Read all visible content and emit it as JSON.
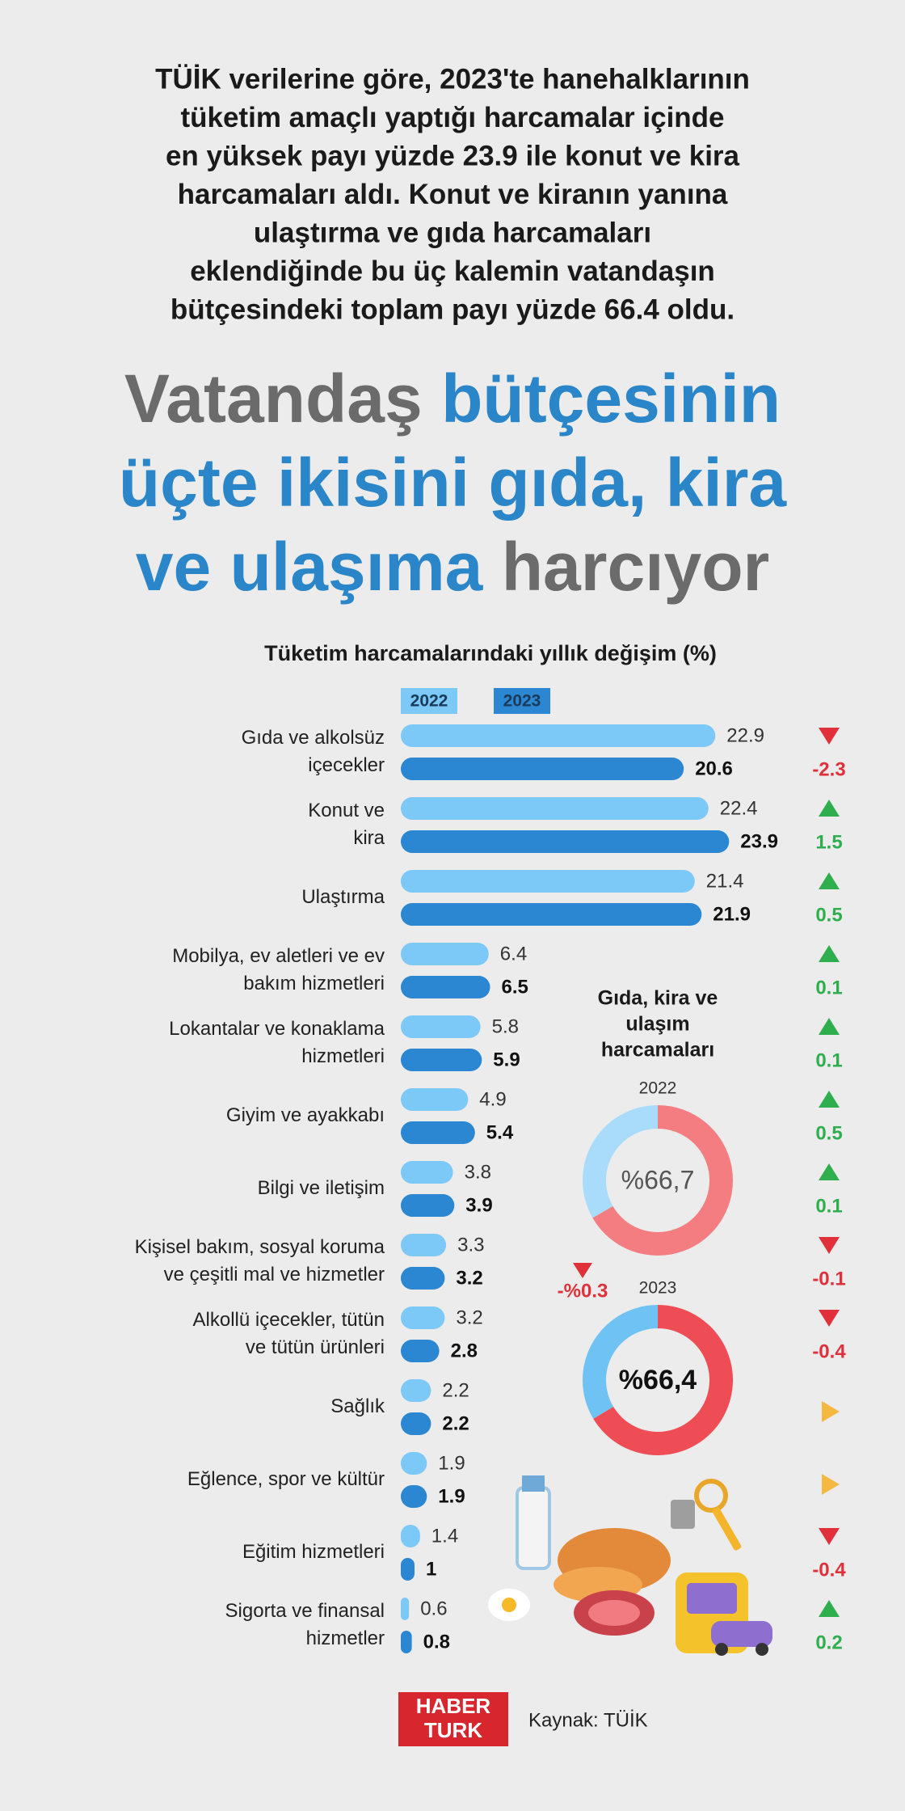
{
  "intro": [
    "TÜİK verilerine göre, 2023'te hanehalklarının",
    "tüketim amaçlı yaptığı harcamalar içinde",
    "en yüksek payı yüzde 23.9 ile konut ve kira",
    "harcamaları aldı. Konut ve kiranın yanına",
    "ulaştırma ve gıda harcamaları",
    "eklendiğinde bu üç kalemin vatandaşın",
    "bütçesindeki toplam payı yüzde 66.4 oldu."
  ],
  "headline": [
    [
      {
        "text": "Vatandaş ",
        "color": "#6b6b6b"
      },
      {
        "text": "bütçesinin",
        "color": "#2a86c8"
      }
    ],
    [
      {
        "text": "üçte ikisini gıda, kira",
        "color": "#2a86c8"
      }
    ],
    [
      {
        "text": "ve ulaşıma",
        "color": "#2a86c8"
      },
      {
        "text": " harcıyor",
        "color": "#6b6b6b"
      }
    ]
  ],
  "chart_data": [
    {
      "type": "bar",
      "orientation": "horizontal",
      "title": "Tüketim harcamalarındaki yıllık değişim (%)",
      "categories": [
        [
          "Gıda ve alkolsüz",
          "içecekler"
        ],
        [
          "Konut ve",
          "kira"
        ],
        [
          "Ulaştırma"
        ],
        [
          "Mobilya, ev aletleri ve ev",
          "bakım hizmetleri"
        ],
        [
          "Lokantalar ve konaklama",
          "hizmetleri"
        ],
        [
          "Giyim ve ayakkabı"
        ],
        [
          "Bilgi ve iletişim"
        ],
        [
          "Kişisel bakım, sosyal koruma",
          "ve çeşitli mal ve hizmetler"
        ],
        [
          "Alkollü içecekler, tütün",
          "ve tütün ürünleri"
        ],
        [
          "Sağlık"
        ],
        [
          "Eğlence, spor ve kültür"
        ],
        [
          "Eğitim hizmetleri"
        ],
        [
          "Sigorta ve finansal",
          "hizmetler"
        ]
      ],
      "series": [
        {
          "name": "2022",
          "color": "#7cc8f6",
          "values": [
            22.9,
            22.4,
            21.4,
            6.4,
            5.8,
            4.9,
            3.8,
            3.3,
            3.2,
            2.2,
            1.9,
            1.4,
            0.6
          ]
        },
        {
          "name": "2023",
          "color": "#2b87d1",
          "values": [
            20.6,
            23.9,
            21.9,
            6.5,
            5.9,
            5.4,
            3.9,
            3.2,
            2.8,
            2.2,
            1.9,
            1.0,
            0.8
          ]
        }
      ],
      "xlim": [
        0,
        25
      ],
      "change": {
        "values": [
          -2.3,
          1.5,
          0.5,
          0.1,
          0.1,
          0.5,
          0.1,
          -0.1,
          -0.4,
          0,
          0,
          -0.4,
          0.2
        ],
        "up_color": "#2fae4e",
        "down_color": "#e0303a",
        "flat_color": "#f5b942"
      }
    },
    {
      "type": "pie",
      "donut": true,
      "title": [
        "Gıda, kira ve",
        "ulaşım",
        "harcamaları"
      ],
      "subtitle": "2022",
      "values": [
        66.7,
        33.3
      ],
      "colors": [
        "#f47d82",
        "#a9dbfa"
      ],
      "value_labels": [
        "%66,7",
        null
      ]
    },
    {
      "type": "pie",
      "donut": true,
      "subtitle": "2023",
      "values": [
        66.4,
        33.6
      ],
      "colors": [
        "#ef4d55",
        "#6fc2f4"
      ],
      "value_labels": [
        "%66,4",
        null
      ],
      "change": {
        "value": -0.3,
        "label": "-%0.3",
        "color": "#e0303a"
      }
    }
  ],
  "logo": [
    "HABER",
    "TURK"
  ],
  "source": "Kaynak: TÜİK"
}
